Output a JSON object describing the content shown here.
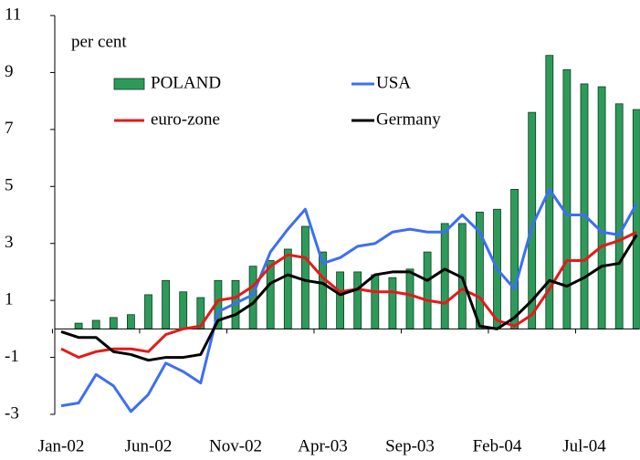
{
  "chart_data": {
    "type": "bar-line",
    "annotation": "per cent",
    "categories": [
      "Jan-02",
      null,
      null,
      null,
      null,
      "Jun-02",
      null,
      null,
      null,
      null,
      "Nov-02",
      null,
      null,
      null,
      null,
      "Apr-03",
      null,
      null,
      null,
      null,
      "Sep-03",
      null,
      null,
      null,
      null,
      "Feb-04",
      null,
      null,
      null,
      null,
      "Jul-04",
      null,
      null,
      null
    ],
    "ylim": [
      -3,
      11
    ],
    "yticks": [
      -3,
      -1,
      1,
      3,
      5,
      7,
      9,
      11
    ],
    "series": [
      {
        "name": "POLAND",
        "type": "bar",
        "color": "#2e9a5a",
        "values": [
          null,
          0.2,
          0.3,
          0.4,
          0.5,
          1.2,
          1.7,
          1.3,
          1.1,
          1.7,
          1.7,
          2.2,
          2.4,
          2.8,
          3.6,
          2.7,
          2.0,
          2.0,
          1.9,
          1.8,
          2.1,
          2.7,
          3.7,
          3.7,
          4.1,
          4.2,
          4.9,
          7.6,
          9.6,
          9.1,
          8.6,
          8.5,
          7.9,
          7.7
        ]
      },
      {
        "name": "USA",
        "type": "line",
        "color": "#3d6ff0",
        "values": [
          -2.7,
          -2.6,
          -1.6,
          -2.0,
          -2.9,
          -2.3,
          -1.2,
          -1.5,
          -1.9,
          0.6,
          0.9,
          1.2,
          2.7,
          3.5,
          4.2,
          2.3,
          2.5,
          2.9,
          3.0,
          3.4,
          3.5,
          3.4,
          3.4,
          4.0,
          3.4,
          2.1,
          1.4,
          3.6,
          4.9,
          4.0,
          4.0,
          3.4,
          3.3,
          4.4
        ]
      },
      {
        "name": "euro-zone",
        "type": "line",
        "color": "#e61919",
        "values": [
          -0.7,
          -1.0,
          -0.8,
          -0.7,
          -0.7,
          -0.8,
          -0.2,
          0.0,
          0.1,
          1.0,
          1.1,
          1.5,
          2.2,
          2.6,
          2.5,
          1.8,
          1.3,
          1.4,
          1.3,
          1.3,
          1.2,
          1.0,
          0.9,
          1.4,
          1.1,
          0.3,
          0.1,
          0.5,
          1.4,
          2.4,
          2.4,
          2.9,
          3.1,
          3.4
        ]
      },
      {
        "name": "Germany",
        "type": "line",
        "color": "#000000",
        "values": [
          -0.1,
          -0.3,
          -0.3,
          -0.8,
          -0.9,
          -1.1,
          -1.0,
          -1.0,
          -0.9,
          0.3,
          0.5,
          0.9,
          1.6,
          1.9,
          1.7,
          1.6,
          1.2,
          1.4,
          1.9,
          2.0,
          2.0,
          1.7,
          2.1,
          1.8,
          0.1,
          0.0,
          0.4,
          1.0,
          1.7,
          1.5,
          1.8,
          2.2,
          2.3,
          3.3
        ]
      }
    ]
  }
}
